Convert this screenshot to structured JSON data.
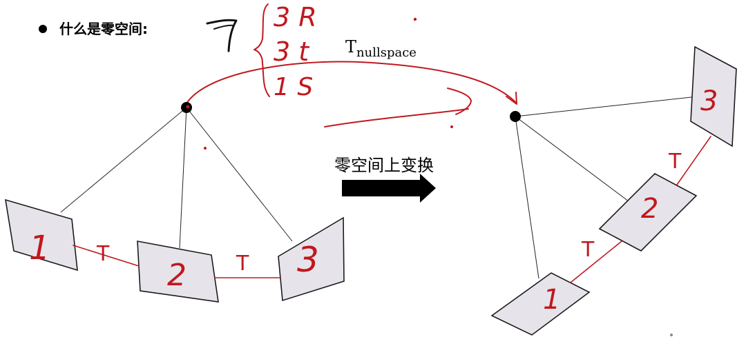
{
  "slide": {
    "bullet_heading": "什么是零空间:",
    "transform_symbol_main": "T",
    "transform_symbol_sub": "nullspace",
    "arrow_caption": "零空间上变换"
  },
  "colors": {
    "ink": "#c0181e",
    "frame_fill": "#e6e4ea",
    "frame_stroke": "#1a1a1a",
    "line": "#222222",
    "dot": "#000000"
  },
  "handwriting": {
    "degrees_of_freedom": [
      "3 R",
      "3 t",
      "1 S"
    ],
    "left_frame_labels": [
      "1",
      "2",
      "3"
    ],
    "left_edge_labels": [
      "T",
      "T"
    ],
    "right_frame_labels": [
      "3",
      "2",
      "1"
    ],
    "right_edge_labels": [
      "T",
      "T"
    ],
    "scribble_mark": "7"
  }
}
